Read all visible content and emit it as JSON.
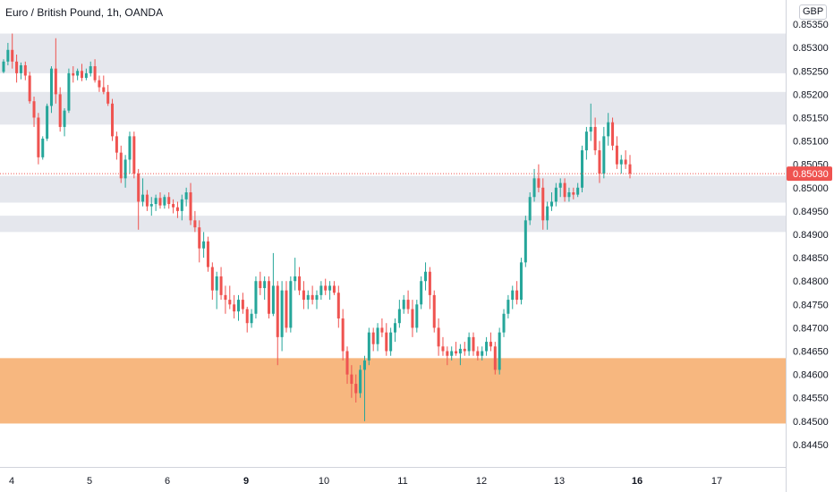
{
  "title": "Euro / British Pound, 1h, OANDA",
  "currency": "GBP",
  "colors": {
    "up": "#26a69a",
    "down": "#ef5350",
    "zone_gray": "#e1e3ea",
    "zone_orange": "#f7b77f",
    "price_line": "#ef5350",
    "axis_line": "#d1d4dc"
  },
  "chart_data": {
    "type": "candlestick",
    "symbol": "EURGBP",
    "timeframe": "1h",
    "source": "OANDA",
    "ylim": [
      0.84425,
      0.85375
    ],
    "y_ticks": [
      "0.85350",
      "0.85300",
      "0.85250",
      "0.85200",
      "0.85150",
      "0.85100",
      "0.85050",
      "0.85000",
      "0.84950",
      "0.84900",
      "0.84850",
      "0.84800",
      "0.84750",
      "0.84700",
      "0.84650",
      "0.84600",
      "0.84550",
      "0.84500",
      "0.84450"
    ],
    "x_ticks": [
      {
        "label": "4",
        "bold": false
      },
      {
        "label": "5",
        "bold": false
      },
      {
        "label": "6",
        "bold": false
      },
      {
        "label": "9",
        "bold": true
      },
      {
        "label": "10",
        "bold": false
      },
      {
        "label": "11",
        "bold": false
      },
      {
        "label": "12",
        "bold": false
      },
      {
        "label": "13",
        "bold": false
      },
      {
        "label": "16",
        "bold": true
      },
      {
        "label": "17",
        "bold": false
      }
    ],
    "last_price": "0.85030",
    "zones": [
      {
        "low": 0.85245,
        "high": 0.8533,
        "color": "gray"
      },
      {
        "low": 0.85135,
        "high": 0.85205,
        "color": "gray"
      },
      {
        "low": 0.84968,
        "high": 0.85025,
        "color": "gray"
      },
      {
        "low": 0.84905,
        "high": 0.8494,
        "color": "gray"
      },
      {
        "low": 0.84495,
        "high": 0.84635,
        "color": "orange"
      }
    ],
    "candles": [
      [
        0.85248,
        0.85275,
        0.85245,
        0.8527
      ],
      [
        0.8527,
        0.8531,
        0.85262,
        0.85295
      ],
      [
        0.85295,
        0.8533,
        0.85255,
        0.8527
      ],
      [
        0.8527,
        0.85285,
        0.85225,
        0.85245
      ],
      [
        0.85245,
        0.85268,
        0.85232,
        0.85262
      ],
      [
        0.85262,
        0.8527,
        0.8523,
        0.8524
      ],
      [
        0.8524,
        0.85248,
        0.8518,
        0.85185
      ],
      [
        0.85185,
        0.85195,
        0.8513,
        0.8515
      ],
      [
        0.8515,
        0.8516,
        0.8505,
        0.85065
      ],
      [
        0.85065,
        0.8511,
        0.8506,
        0.85105
      ],
      [
        0.85105,
        0.8518,
        0.851,
        0.85175
      ],
      [
        0.85175,
        0.8526,
        0.8516,
        0.85255
      ],
      [
        0.85255,
        0.8532,
        0.8518,
        0.852
      ],
      [
        0.852,
        0.85215,
        0.8512,
        0.8513
      ],
      [
        0.8513,
        0.8517,
        0.8511,
        0.85165
      ],
      [
        0.85165,
        0.85255,
        0.8516,
        0.85245
      ],
      [
        0.85245,
        0.8526,
        0.85225,
        0.8524
      ],
      [
        0.8524,
        0.85255,
        0.8523,
        0.8525
      ],
      [
        0.8525,
        0.85265,
        0.85228,
        0.85235
      ],
      [
        0.85235,
        0.85255,
        0.8523,
        0.85245
      ],
      [
        0.85245,
        0.8527,
        0.85238,
        0.8526
      ],
      [
        0.8526,
        0.85275,
        0.85225,
        0.8523
      ],
      [
        0.8523,
        0.8524,
        0.85205,
        0.85215
      ],
      [
        0.85215,
        0.8524,
        0.852,
        0.85205
      ],
      [
        0.85205,
        0.8522,
        0.85175,
        0.8518
      ],
      [
        0.8518,
        0.8519,
        0.851,
        0.8511
      ],
      [
        0.8511,
        0.8512,
        0.8506,
        0.85075
      ],
      [
        0.85075,
        0.8509,
        0.8501,
        0.8502
      ],
      [
        0.8502,
        0.8507,
        0.85,
        0.8506
      ],
      [
        0.8506,
        0.8512,
        0.8503,
        0.8511
      ],
      [
        0.8511,
        0.8512,
        0.8502,
        0.8503
      ],
      [
        0.8503,
        0.8504,
        0.8491,
        0.8497
      ],
      [
        0.8497,
        0.8502,
        0.8496,
        0.84985
      ],
      [
        0.84985,
        0.84995,
        0.8495,
        0.8496
      ],
      [
        0.8496,
        0.8498,
        0.8494,
        0.84965
      ],
      [
        0.84965,
        0.84985,
        0.8495,
        0.84978
      ],
      [
        0.84978,
        0.8499,
        0.84955,
        0.84962
      ],
      [
        0.84962,
        0.84985,
        0.84955,
        0.8498
      ],
      [
        0.8498,
        0.8499,
        0.84955,
        0.84965
      ],
      [
        0.84965,
        0.84975,
        0.84945,
        0.84958
      ],
      [
        0.84958,
        0.8497,
        0.84935,
        0.8495
      ],
      [
        0.8495,
        0.84985,
        0.8493,
        0.84975
      ],
      [
        0.84975,
        0.85,
        0.8496,
        0.8499
      ],
      [
        0.8499,
        0.8501,
        0.8492,
        0.8493
      ],
      [
        0.8493,
        0.8495,
        0.84905,
        0.84915
      ],
      [
        0.84915,
        0.8493,
        0.8484,
        0.8487
      ],
      [
        0.8487,
        0.84905,
        0.8485,
        0.84885
      ],
      [
        0.84885,
        0.84895,
        0.8482,
        0.8483
      ],
      [
        0.8483,
        0.8484,
        0.8476,
        0.8478
      ],
      [
        0.8478,
        0.8482,
        0.8474,
        0.8481
      ],
      [
        0.8481,
        0.8483,
        0.8476,
        0.8477
      ],
      [
        0.8477,
        0.8479,
        0.8473,
        0.8476
      ],
      [
        0.8476,
        0.8479,
        0.8474,
        0.8475
      ],
      [
        0.8475,
        0.8477,
        0.8472,
        0.84735
      ],
      [
        0.84735,
        0.8477,
        0.84715,
        0.8476
      ],
      [
        0.8476,
        0.84775,
        0.8473,
        0.8474
      ],
      [
        0.8474,
        0.84745,
        0.8469,
        0.8471
      ],
      [
        0.8471,
        0.8474,
        0.847,
        0.8473
      ],
      [
        0.8473,
        0.8481,
        0.8472,
        0.848
      ],
      [
        0.848,
        0.8482,
        0.8477,
        0.84785
      ],
      [
        0.84785,
        0.8481,
        0.8476,
        0.848
      ],
      [
        0.848,
        0.8481,
        0.8472,
        0.8473
      ],
      [
        0.8473,
        0.8486,
        0.84725,
        0.8479
      ],
      [
        0.8479,
        0.848,
        0.8462,
        0.8468
      ],
      [
        0.8468,
        0.848,
        0.8465,
        0.8478
      ],
      [
        0.8478,
        0.848,
        0.8469,
        0.847
      ],
      [
        0.847,
        0.8481,
        0.8469,
        0.848
      ],
      [
        0.848,
        0.8485,
        0.8478,
        0.8481
      ],
      [
        0.8481,
        0.8483,
        0.8477,
        0.8478
      ],
      [
        0.8478,
        0.848,
        0.8474,
        0.8476
      ],
      [
        0.8476,
        0.8478,
        0.8474,
        0.8477
      ],
      [
        0.8477,
        0.8479,
        0.8475,
        0.8476
      ],
      [
        0.8476,
        0.8478,
        0.8474,
        0.8477
      ],
      [
        0.8477,
        0.848,
        0.8476,
        0.8479
      ],
      [
        0.8479,
        0.84805,
        0.8477,
        0.8478
      ],
      [
        0.8478,
        0.848,
        0.8476,
        0.8479
      ],
      [
        0.8479,
        0.848,
        0.8477,
        0.84775
      ],
      [
        0.84775,
        0.8479,
        0.847,
        0.8472
      ],
      [
        0.8472,
        0.8474,
        0.8463,
        0.8465
      ],
      [
        0.8465,
        0.8466,
        0.8458,
        0.846
      ],
      [
        0.846,
        0.8462,
        0.8455,
        0.8458
      ],
      [
        0.8458,
        0.846,
        0.8454,
        0.8456
      ],
      [
        0.8456,
        0.8462,
        0.8455,
        0.8461
      ],
      [
        0.8461,
        0.8464,
        0.845,
        0.8463
      ],
      [
        0.8463,
        0.847,
        0.8462,
        0.8469
      ],
      [
        0.8469,
        0.847,
        0.8465,
        0.84665
      ],
      [
        0.84665,
        0.8471,
        0.8465,
        0.847
      ],
      [
        0.847,
        0.8472,
        0.8468,
        0.8469
      ],
      [
        0.8469,
        0.8471,
        0.8464,
        0.8465
      ],
      [
        0.8465,
        0.847,
        0.8464,
        0.8469
      ],
      [
        0.8469,
        0.8472,
        0.8467,
        0.8471
      ],
      [
        0.8471,
        0.8476,
        0.847,
        0.8474
      ],
      [
        0.8474,
        0.8477,
        0.8473,
        0.8476
      ],
      [
        0.8476,
        0.8478,
        0.8473,
        0.8474
      ],
      [
        0.8474,
        0.8476,
        0.8468,
        0.847
      ],
      [
        0.847,
        0.8476,
        0.8469,
        0.8475
      ],
      [
        0.8475,
        0.8481,
        0.8474,
        0.848
      ],
      [
        0.848,
        0.8484,
        0.8478,
        0.8482
      ],
      [
        0.8482,
        0.8483,
        0.8474,
        0.8477
      ],
      [
        0.8477,
        0.8478,
        0.8469,
        0.847
      ],
      [
        0.847,
        0.8472,
        0.8464,
        0.8466
      ],
      [
        0.8466,
        0.8468,
        0.8464,
        0.8465
      ],
      [
        0.8465,
        0.8466,
        0.8462,
        0.8464
      ],
      [
        0.8464,
        0.8466,
        0.8463,
        0.8465
      ],
      [
        0.8465,
        0.8467,
        0.8464,
        0.84645
      ],
      [
        0.84645,
        0.84665,
        0.8462,
        0.84655
      ],
      [
        0.84655,
        0.8467,
        0.8464,
        0.8465
      ],
      [
        0.8465,
        0.8469,
        0.8464,
        0.8468
      ],
      [
        0.8468,
        0.8469,
        0.8464,
        0.8465
      ],
      [
        0.8465,
        0.8466,
        0.8463,
        0.8464
      ],
      [
        0.8464,
        0.8466,
        0.8463,
        0.8465
      ],
      [
        0.8465,
        0.8468,
        0.8464,
        0.8467
      ],
      [
        0.8467,
        0.8469,
        0.8465,
        0.8466
      ],
      [
        0.8466,
        0.8467,
        0.846,
        0.8461
      ],
      [
        0.8461,
        0.847,
        0.846,
        0.8469
      ],
      [
        0.8469,
        0.8474,
        0.8468,
        0.8473
      ],
      [
        0.8473,
        0.8477,
        0.8472,
        0.8476
      ],
      [
        0.8476,
        0.8479,
        0.8474,
        0.8478
      ],
      [
        0.8478,
        0.848,
        0.8475,
        0.8476
      ],
      [
        0.8476,
        0.8485,
        0.8475,
        0.8484
      ],
      [
        0.8484,
        0.8494,
        0.8483,
        0.8493
      ],
      [
        0.8493,
        0.8499,
        0.8492,
        0.8498
      ],
      [
        0.8498,
        0.8504,
        0.8497,
        0.8502
      ],
      [
        0.8502,
        0.8505,
        0.8499,
        0.85
      ],
      [
        0.85,
        0.8502,
        0.8491,
        0.8493
      ],
      [
        0.8493,
        0.8497,
        0.8491,
        0.8496
      ],
      [
        0.8496,
        0.8499,
        0.8495,
        0.8497
      ],
      [
        0.8497,
        0.8501,
        0.8496,
        0.85
      ],
      [
        0.85,
        0.8502,
        0.8498,
        0.8501
      ],
      [
        0.8501,
        0.8502,
        0.8497,
        0.8498
      ],
      [
        0.8498,
        0.85,
        0.8497,
        0.8499
      ],
      [
        0.8499,
        0.85,
        0.84975,
        0.84985
      ],
      [
        0.84985,
        0.8501,
        0.8498,
        0.85
      ],
      [
        0.85,
        0.8509,
        0.8499,
        0.8508
      ],
      [
        0.8508,
        0.8513,
        0.8506,
        0.8512
      ],
      [
        0.8512,
        0.8518,
        0.851,
        0.8513
      ],
      [
        0.8513,
        0.8515,
        0.8507,
        0.8508
      ],
      [
        0.8508,
        0.851,
        0.8501,
        0.8503
      ],
      [
        0.8503,
        0.8513,
        0.8502,
        0.8511
      ],
      [
        0.8511,
        0.8516,
        0.8509,
        0.8514
      ],
      [
        0.8514,
        0.8515,
        0.8508,
        0.8509
      ],
      [
        0.8509,
        0.8511,
        0.8504,
        0.8505
      ],
      [
        0.8505,
        0.8507,
        0.8503,
        0.8506
      ],
      [
        0.8506,
        0.8508,
        0.8504,
        0.8505
      ],
      [
        0.8505,
        0.8507,
        0.8502,
        0.8503
      ]
    ]
  }
}
